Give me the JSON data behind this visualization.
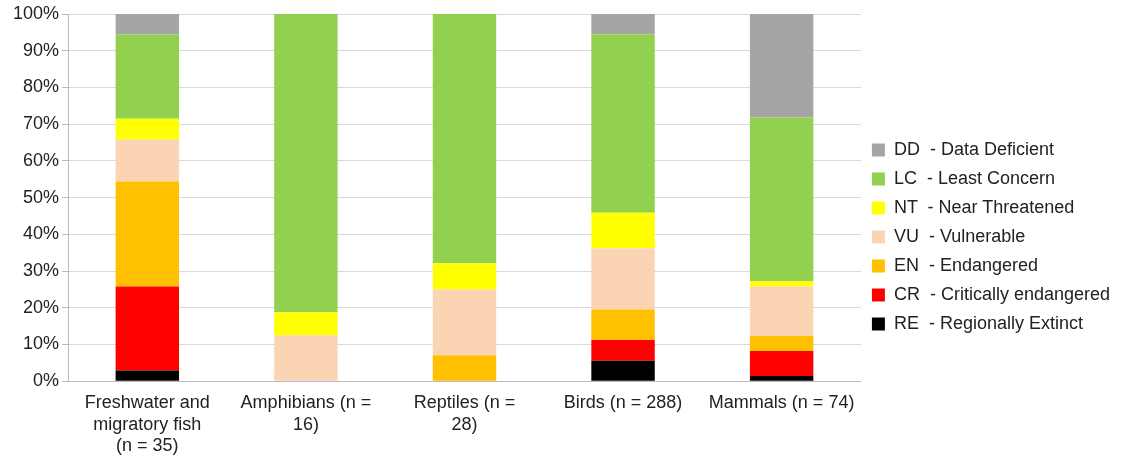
{
  "chart_data": {
    "type": "bar",
    "stacked": true,
    "categories": [
      "Freshwater and migratory fish (n = 35)",
      "Amphibians (n = 16)",
      "Reptiles (n = 28)",
      "Birds (n = 288)",
      "Mammals (n = 74)"
    ],
    "series": [
      {
        "name": "RE  - Regionally Extinct",
        "color": "#000000",
        "values": [
          2.9,
          0,
          0,
          5.6,
          1.4
        ]
      },
      {
        "name": "CR  - Critically endangered",
        "color": "#ff0000",
        "values": [
          22.9,
          0,
          0,
          5.6,
          6.8
        ]
      },
      {
        "name": "EN  - Endangered",
        "color": "#ffc000",
        "values": [
          28.6,
          0,
          7.1,
          8.3,
          4.1
        ]
      },
      {
        "name": "VU  - Vulnerable",
        "color": "#fbd4b4",
        "values": [
          11.4,
          12.5,
          17.9,
          16.7,
          13.5
        ]
      },
      {
        "name": "NT  - Near Threatened",
        "color": "#ffff00",
        "values": [
          5.7,
          6.3,
          7.1,
          9.7,
          1.4
        ]
      },
      {
        "name": "LC  - Least Concern",
        "color": "#92d050",
        "values": [
          22.9,
          81.2,
          67.9,
          48.6,
          44.6
        ]
      },
      {
        "name": "DD  - Data Deficient",
        "color": "#a5a5a5",
        "values": [
          5.7,
          0,
          0,
          5.6,
          28.4
        ]
      }
    ],
    "ylim": [
      0,
      100
    ],
    "yticks": [
      {
        "value": 0,
        "label": "0%"
      },
      {
        "value": 10,
        "label": "10%"
      },
      {
        "value": 20,
        "label": "20%"
      },
      {
        "value": 30,
        "label": "30%"
      },
      {
        "value": 40,
        "label": "40%"
      },
      {
        "value": 50,
        "label": "50%"
      },
      {
        "value": 60,
        "label": "60%"
      },
      {
        "value": 70,
        "label": "70%"
      },
      {
        "value": 80,
        "label": "80%"
      },
      {
        "value": 90,
        "label": "90%"
      },
      {
        "value": 100,
        "label": "100%"
      }
    ],
    "grid": "y",
    "legend": "right"
  }
}
